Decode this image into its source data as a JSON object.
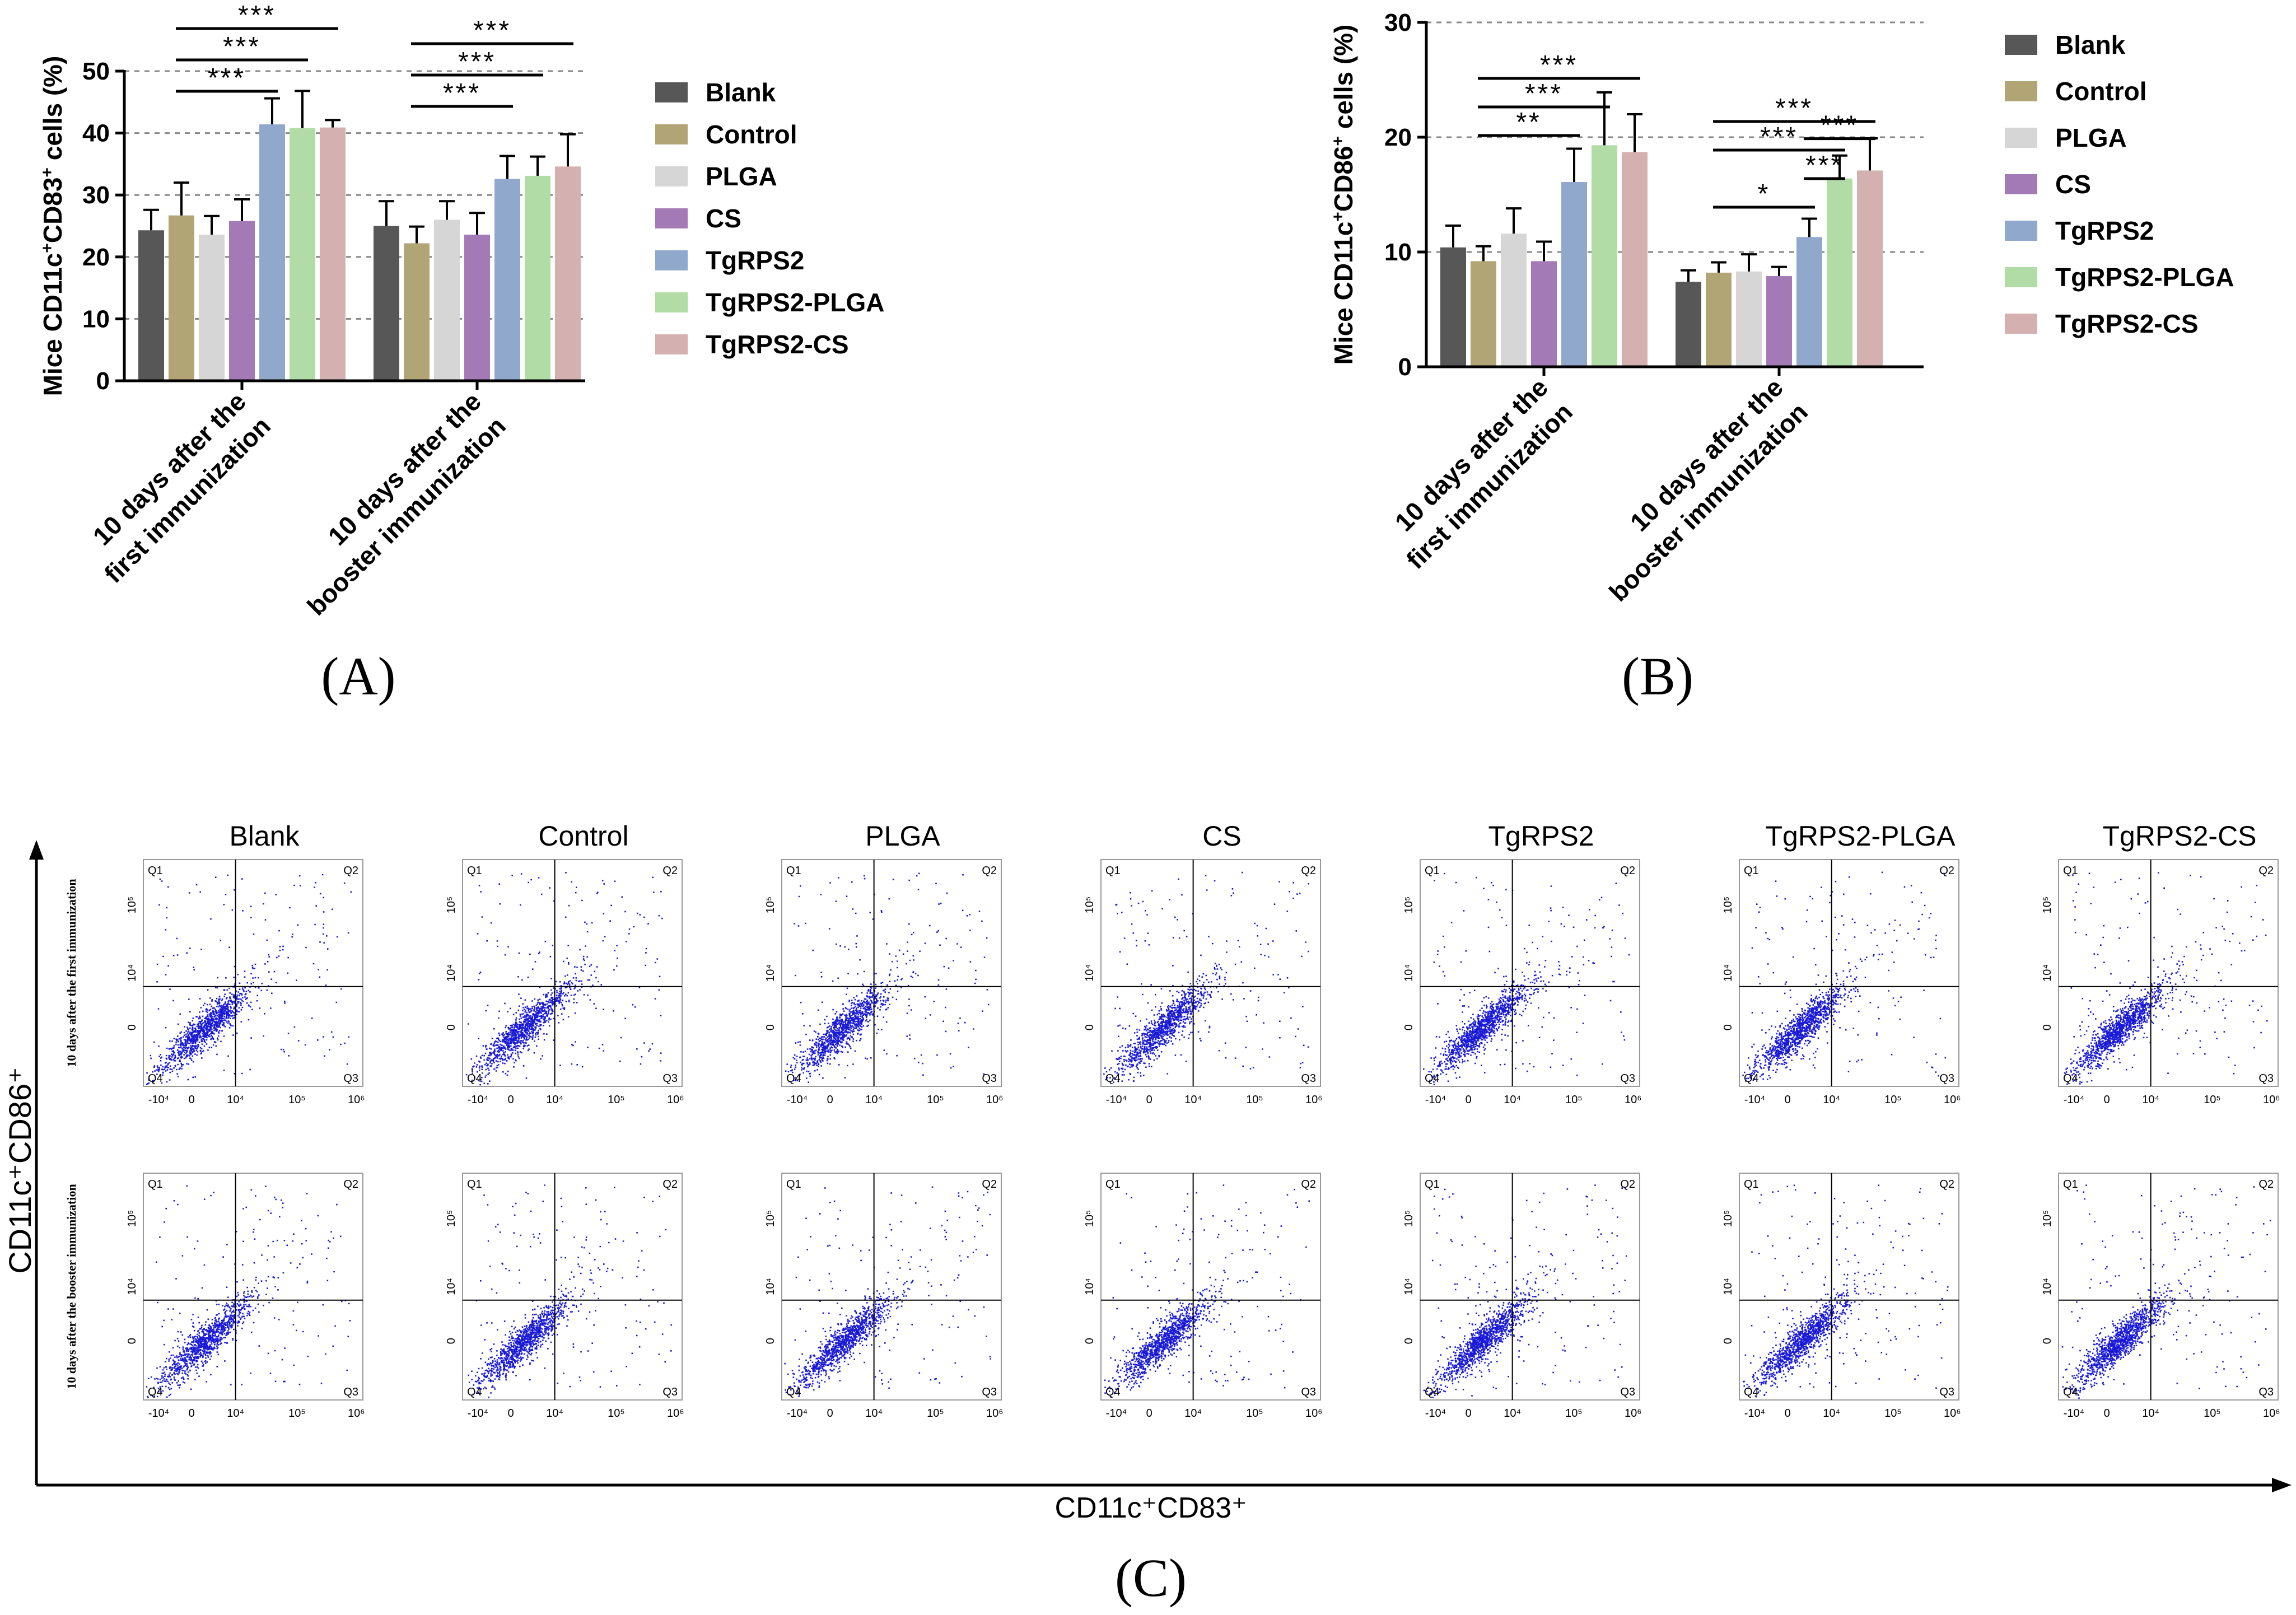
{
  "colors": {
    "Blank": "#575757",
    "Control": "#b1a575",
    "PLGA": "#d6d6d6",
    "CS": "#a47ab6",
    "TgRPS2": "#8fa8cc",
    "TgRPS2-PLGA": "#b2dca6",
    "TgRPS2-CS": "#d5b0b0",
    "dots": "#1a1ad6",
    "axis": "#000000",
    "grid": "#888888"
  },
  "chart_data": [
    {
      "type": "bar",
      "panel": "(A)",
      "ylabel_parts": [
        "Mice CD11c",
        "+",
        "CD83",
        "+",
        " cells (%)"
      ],
      "ylim": [
        0,
        50
      ],
      "yticks": [
        0,
        10,
        20,
        30,
        40,
        50
      ],
      "grid": true,
      "legend_position": "right",
      "categories": [
        "10 days after the\nfirst immunization",
        "10 days after the\nbooster immunization"
      ],
      "series": [
        {
          "name": "Blank",
          "values": [
            24.3,
            25.0
          ],
          "errors": [
            3.3,
            4.0
          ]
        },
        {
          "name": "Control",
          "values": [
            26.7,
            22.2
          ],
          "errors": [
            5.3,
            2.7
          ]
        },
        {
          "name": "PLGA",
          "values": [
            23.6,
            26.0
          ],
          "errors": [
            3.0,
            3.0
          ]
        },
        {
          "name": "CS",
          "values": [
            25.8,
            23.6
          ],
          "errors": [
            3.5,
            3.5
          ]
        },
        {
          "name": "TgRPS2",
          "values": [
            41.4,
            32.6
          ],
          "errors": [
            4.2,
            3.7
          ]
        },
        {
          "name": "TgRPS2-PLGA",
          "values": [
            40.8,
            33.1
          ],
          "errors": [
            6.0,
            3.1
          ]
        },
        {
          "name": "TgRPS2-CS",
          "values": [
            40.9,
            34.6
          ],
          "errors": [
            1.2,
            5.2
          ]
        }
      ],
      "significance": [
        {
          "group": 0,
          "from": "Control",
          "to": "TgRPS2",
          "level": 1,
          "label": "***"
        },
        {
          "group": 0,
          "from": "Control",
          "to": "TgRPS2-PLGA",
          "level": 2,
          "label": "***"
        },
        {
          "group": 0,
          "from": "Control",
          "to": "TgRPS2-CS",
          "level": 3,
          "label": "***"
        },
        {
          "group": 1,
          "from": "Control",
          "to": "TgRPS2",
          "level": 1,
          "label": "***"
        },
        {
          "group": 1,
          "from": "Control",
          "to": "TgRPS2-PLGA",
          "level": 2,
          "label": "***"
        },
        {
          "group": 1,
          "from": "Control",
          "to": "TgRPS2-CS",
          "level": 3,
          "label": "***"
        }
      ]
    },
    {
      "type": "bar",
      "panel": "(B)",
      "ylabel_parts": [
        "Mice CD11c",
        "+",
        "CD86",
        "+",
        " cells (%)"
      ],
      "ylim": [
        0,
        30
      ],
      "yticks": [
        0,
        10,
        20,
        30
      ],
      "grid": true,
      "legend_position": "right",
      "categories": [
        "10 days after the\nfirst immunization",
        "10 days after the\nbooster immunization"
      ],
      "series": [
        {
          "name": "Blank",
          "values": [
            10.4,
            7.4
          ],
          "errors": [
            1.9,
            1.0
          ]
        },
        {
          "name": "Control",
          "values": [
            9.2,
            8.2
          ],
          "errors": [
            1.3,
            0.9
          ]
        },
        {
          "name": "PLGA",
          "values": [
            11.6,
            8.3
          ],
          "errors": [
            2.2,
            1.5
          ]
        },
        {
          "name": "CS",
          "values": [
            9.2,
            7.9
          ],
          "errors": [
            1.7,
            0.8
          ]
        },
        {
          "name": "TgRPS2",
          "values": [
            16.1,
            11.3
          ],
          "errors": [
            2.9,
            1.6
          ]
        },
        {
          "name": "TgRPS2-PLGA",
          "values": [
            19.3,
            16.4
          ],
          "errors": [
            4.6,
            2.0
          ]
        },
        {
          "name": "TgRPS2-CS",
          "values": [
            18.7,
            17.1
          ],
          "errors": [
            3.3,
            2.8
          ]
        }
      ],
      "significance": [
        {
          "group": 0,
          "from": "Control",
          "to": "TgRPS2",
          "level": 1,
          "label": "**"
        },
        {
          "group": 0,
          "from": "Control",
          "to": "TgRPS2-PLGA",
          "level": 2,
          "label": "***"
        },
        {
          "group": 0,
          "from": "Control",
          "to": "TgRPS2-CS",
          "level": 3,
          "label": "***"
        },
        {
          "group": 1,
          "from": "Control",
          "to": "TgRPS2",
          "level": 1,
          "label": "*"
        },
        {
          "group": 1,
          "from": "Control",
          "to": "TgRPS2-PLGA",
          "level": 3,
          "label": "***"
        },
        {
          "group": 1,
          "from": "Control",
          "to": "TgRPS2-CS",
          "level": 4,
          "label": "***"
        },
        {
          "group": 1,
          "from": "TgRPS2",
          "to": "TgRPS2-PLGA",
          "level": 2,
          "label": "***"
        },
        {
          "group": 1,
          "from": "TgRPS2",
          "to": "TgRPS2-CS",
          "level": 3.4,
          "label": "***"
        }
      ]
    },
    {
      "type": "scatter",
      "panel": "(C)",
      "description_type": "flow cytometry dot plots",
      "xlabel": "CD11c⁺CD83⁺",
      "ylabel": "CD11c⁺CD86⁺",
      "column_titles": [
        "Blank",
        "Control",
        "PLGA",
        "CS",
        "TgRPS2",
        "TgRPS2-PLGA",
        "TgRPS2-CS"
      ],
      "row_labels": [
        "10 days after the first immunization",
        "10 days after the booster immunization"
      ],
      "quadrant_labels": [
        "Q1",
        "Q2",
        "Q3",
        "Q4"
      ],
      "x_ticks": [
        "-10⁴",
        "0",
        "10⁴",
        "10⁵",
        "10⁶"
      ],
      "y_ticks": [
        "0",
        "10⁴",
        "10⁵"
      ]
    }
  ],
  "panel_labels": {
    "a": "(A)",
    "b": "(B)",
    "c": "(C)"
  }
}
